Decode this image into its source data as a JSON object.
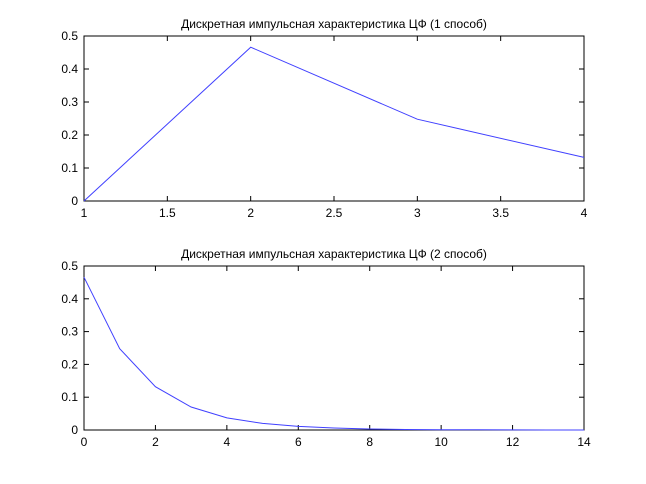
{
  "chart_data": [
    {
      "type": "line",
      "title": "Дискретная импульсная характеристика ЦФ (1 способ)",
      "xlim": [
        1,
        4
      ],
      "ylim": [
        0,
        0.5
      ],
      "xticks": [
        "1",
        "1.5",
        "2",
        "2.5",
        "3",
        "3.5",
        "4"
      ],
      "yticks": [
        "0",
        "0.1",
        "0.2",
        "0.3",
        "0.4",
        "0.5"
      ],
      "grid": false,
      "color": "#4040ff",
      "x": [
        1,
        2,
        3,
        4
      ],
      "y": [
        0,
        0.466,
        0.248,
        0.132
      ]
    },
    {
      "type": "line",
      "title": "Дискретная импульсная характеристика ЦФ (2 способ)",
      "xlim": [
        0,
        14
      ],
      "ylim": [
        0,
        0.5
      ],
      "xticks": [
        "0",
        "2",
        "4",
        "6",
        "8",
        "10",
        "12",
        "14"
      ],
      "yticks": [
        "0",
        "0.1",
        "0.2",
        "0.3",
        "0.4",
        "0.5"
      ],
      "grid": false,
      "color": "#4040ff",
      "x": [
        0,
        1,
        2,
        3,
        4,
        5,
        6,
        7,
        8,
        9,
        10,
        11,
        12,
        13,
        14
      ],
      "y": [
        0.466,
        0.248,
        0.132,
        0.07,
        0.037,
        0.02,
        0.011,
        0.006,
        0.003,
        0.0016,
        0.0009,
        0.0005,
        0.0003,
        0.0001,
        0.0001
      ]
    }
  ]
}
